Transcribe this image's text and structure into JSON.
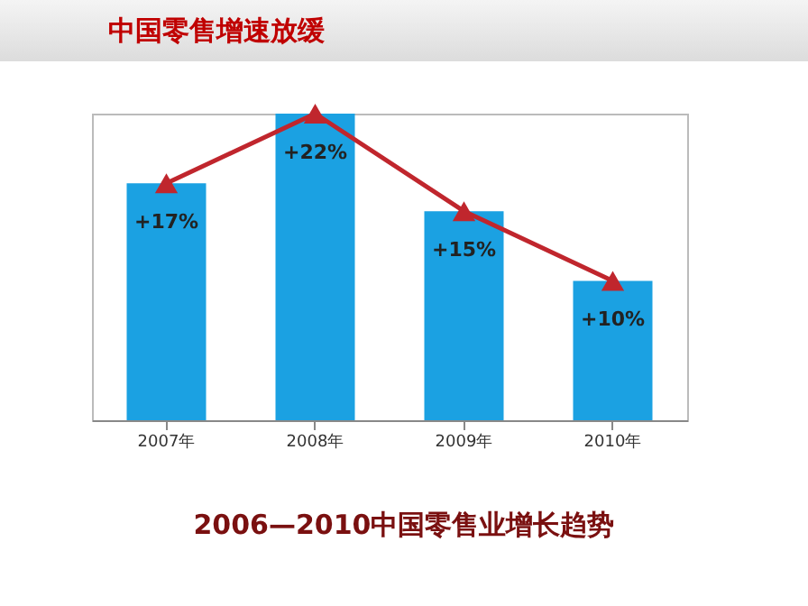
{
  "chart_data": {
    "type": "bar",
    "title": "中国零售增速放缓",
    "annotations": [
      "2006—2010中国零售业增长趋势"
    ],
    "categories": [
      "2007年",
      "2008年",
      "2009年",
      "2010年"
    ],
    "series": [
      {
        "color": "#1ba1e2",
        "values": [
          17,
          22,
          15,
          10
        ],
        "value_labels": [
          "+17%",
          "+22%",
          "+15%",
          "+10%"
        ]
      },
      {
        "type": "line",
        "color": "#c0262d",
        "values": [
          17,
          22,
          15,
          10
        ],
        "marker": "triangle"
      }
    ],
    "tick_labels": "x"
  }
}
